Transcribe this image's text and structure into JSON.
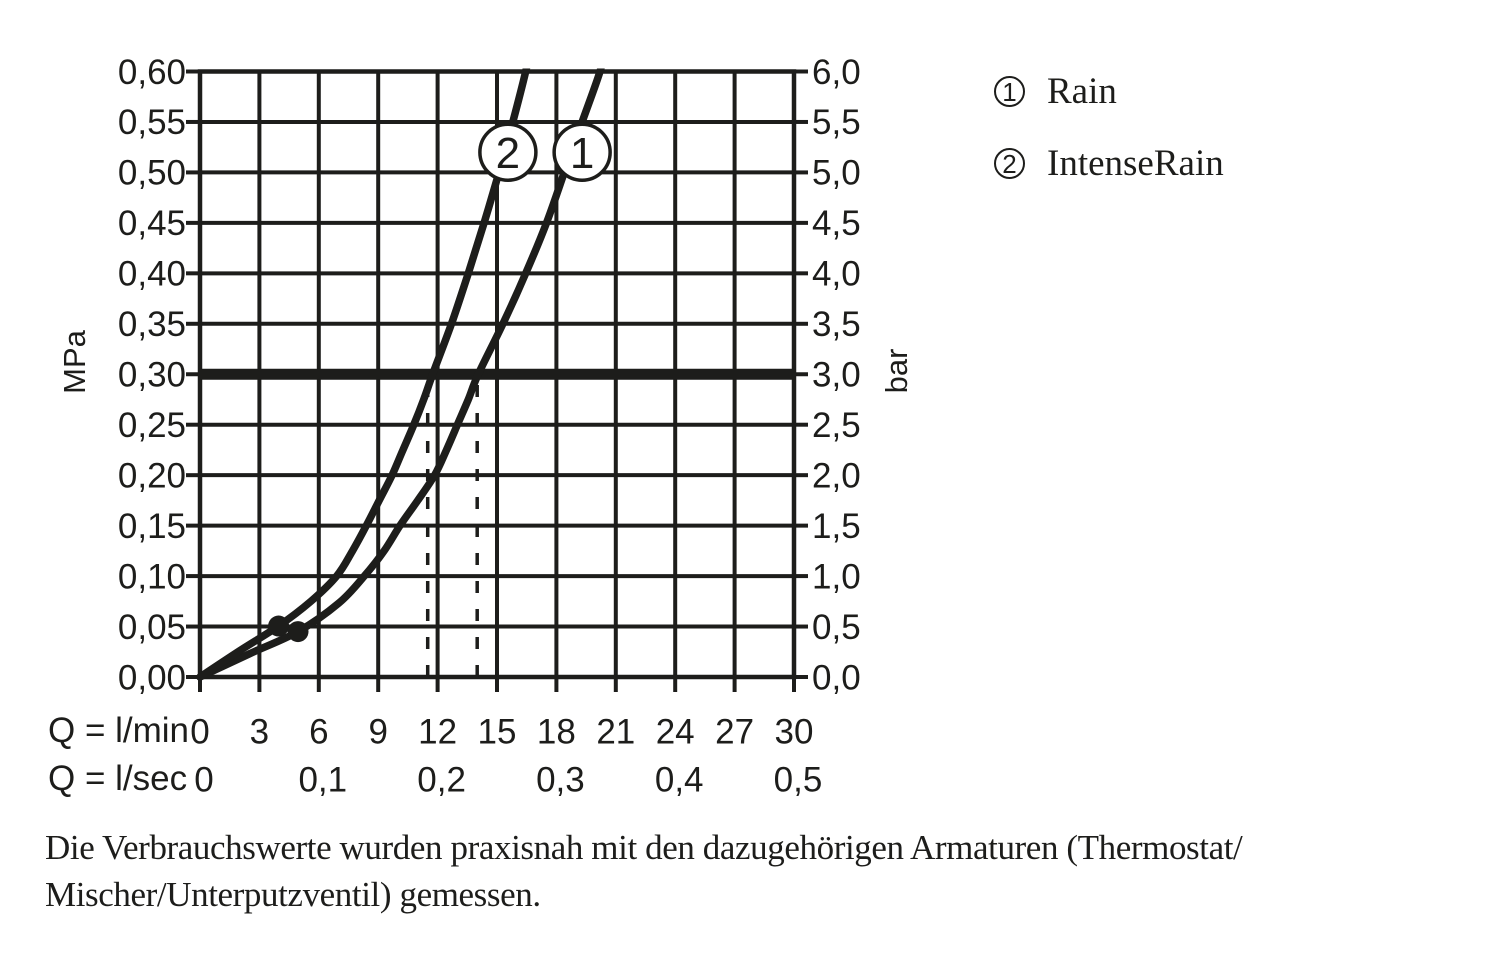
{
  "colors": {
    "ink": "#1d1d1b",
    "background": "#ffffff"
  },
  "chart_data": {
    "type": "line",
    "title": "",
    "description": "Flow rate vs. pressure diagram for shower spray modes",
    "x_axis": {
      "label_lmin": "Q = l/min",
      "label_lsec": "Q = l/sec",
      "range_lmin": [
        0,
        30
      ],
      "tick_values_lmin": [
        0,
        3,
        6,
        9,
        12,
        15,
        18,
        21,
        24,
        27,
        30
      ],
      "tick_labels_lmin": [
        "0",
        "3",
        "6",
        "9",
        "12",
        "15",
        "18",
        "21",
        "24",
        "27",
        "30"
      ],
      "tick_values_lsec_positions_lmin": [
        0,
        6,
        12,
        18,
        24,
        30
      ],
      "tick_labels_lsec": [
        "0",
        "0,1",
        "0,2",
        "0,3",
        "0,4",
        "0,5"
      ]
    },
    "y_left": {
      "label": "MPa",
      "range": [
        0,
        0.6
      ],
      "tick_values": [
        0,
        0.05,
        0.1,
        0.15,
        0.2,
        0.25,
        0.3,
        0.35,
        0.4,
        0.45,
        0.5,
        0.55,
        0.6
      ],
      "tick_labels": [
        "0,00",
        "0,05",
        "0,10",
        "0,15",
        "0,20",
        "0,25",
        "0,30",
        "0,35",
        "0,40",
        "0,45",
        "0,50",
        "0,55",
        "0,60"
      ]
    },
    "y_right": {
      "label": "bar",
      "range": [
        0,
        6
      ],
      "tick_values": [
        0,
        0.05,
        0.1,
        0.15,
        0.2,
        0.25,
        0.3,
        0.35,
        0.4,
        0.45,
        0.5,
        0.55,
        0.6
      ],
      "tick_labels": [
        "0,0",
        "0,5",
        "1,0",
        "1,5",
        "2,0",
        "2,5",
        "3,0",
        "3,5",
        "4,0",
        "4,5",
        "5,0",
        "5,5",
        "6,0"
      ]
    },
    "reference_line": {
      "value_mpa": 0.3,
      "value_bar": 3.0
    },
    "dashed_guides_lmin": [
      11.5,
      14.0
    ],
    "flow_at_3bar_lmin": {
      "Rain": 14.0,
      "IntenseRain": 11.5
    },
    "dots": [
      {
        "series": "IntenseRain",
        "q_lmin": 3.97,
        "p_mpa": 0.0505
      },
      {
        "series": "Rain",
        "q_lmin": 4.95,
        "p_mpa": 0.045
      }
    ],
    "series": [
      {
        "id": 1,
        "name": "Rain",
        "marker": {
          "label": "1",
          "q_lmin": 19.3,
          "p_mpa": 0.52
        },
        "points": [
          [
            0,
            0
          ],
          [
            2.5,
            0.023
          ],
          [
            4.95,
            0.045
          ],
          [
            7.0,
            0.073
          ],
          [
            8.3,
            0.1
          ],
          [
            9.3,
            0.125
          ],
          [
            10.1,
            0.15
          ],
          [
            11.0,
            0.175
          ],
          [
            11.85,
            0.2
          ],
          [
            12.45,
            0.225
          ],
          [
            13.0,
            0.25
          ],
          [
            13.55,
            0.275
          ],
          [
            14.05,
            0.3
          ],
          [
            15.3,
            0.35
          ],
          [
            16.45,
            0.4
          ],
          [
            17.5,
            0.45
          ],
          [
            18.4,
            0.5
          ],
          [
            19.3,
            0.55
          ],
          [
            20.2,
            0.6
          ],
          [
            20.55,
            0.63
          ]
        ]
      },
      {
        "id": 2,
        "name": "IntenseRain",
        "marker": {
          "label": "2",
          "q_lmin": 15.55,
          "p_mpa": 0.52
        },
        "points": [
          [
            0,
            0
          ],
          [
            2.0,
            0.026
          ],
          [
            3.97,
            0.0505
          ],
          [
            5.6,
            0.075
          ],
          [
            6.9,
            0.1
          ],
          [
            7.7,
            0.125
          ],
          [
            8.4,
            0.15
          ],
          [
            9.05,
            0.175
          ],
          [
            9.7,
            0.2
          ],
          [
            10.25,
            0.225
          ],
          [
            10.8,
            0.25
          ],
          [
            11.3,
            0.275
          ],
          [
            11.75,
            0.3
          ],
          [
            12.7,
            0.35
          ],
          [
            13.55,
            0.4
          ],
          [
            14.35,
            0.45
          ],
          [
            15.1,
            0.5
          ],
          [
            15.8,
            0.55
          ],
          [
            16.45,
            0.6
          ],
          [
            16.78,
            0.63
          ]
        ]
      }
    ]
  },
  "legend": {
    "items": [
      {
        "number": "1",
        "label": "Rain"
      },
      {
        "number": "2",
        "label": "IntenseRain"
      }
    ]
  },
  "footnote": {
    "line1": "Die Verbrauchswerte wurden praxisnah mit den dazugehörigen Armaturen (Thermostat/",
    "line2": "Mischer/Unterputzventil) gemessen."
  }
}
